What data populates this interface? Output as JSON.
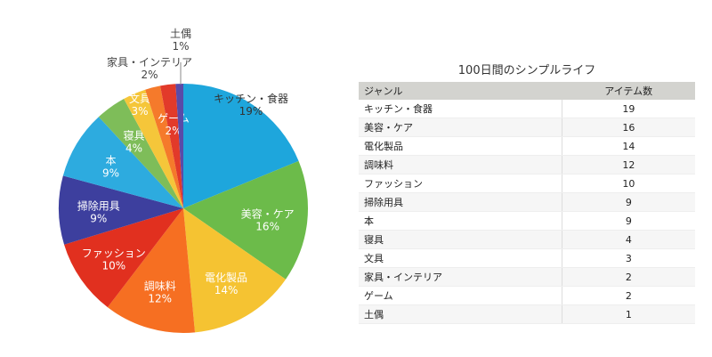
{
  "chart_data": {
    "type": "pie",
    "title": "100日間のシンプルライフ",
    "categories": [
      "キッチン・食器",
      "美容・ケア",
      "電化製品",
      "調味料",
      "ファッション",
      "掃除用具",
      "本",
      "寝具",
      "文具",
      "家具・インテリア",
      "ゲーム",
      "土偶"
    ],
    "values": [
      19,
      16,
      14,
      12,
      10,
      9,
      9,
      4,
      3,
      2,
      2,
      1
    ],
    "percent_labels": [
      "19%",
      "16%",
      "14%",
      "12%",
      "10%",
      "9%",
      "9%",
      "4%",
      "3%",
      "2%",
      "2%",
      "1%"
    ],
    "colors": [
      "#1ea6dc",
      "#6cbb4a",
      "#f5c332",
      "#f66f22",
      "#e1301f",
      "#3d3f9e",
      "#2dabdf",
      "#7ebd59",
      "#f5c63a",
      "#f57a2b",
      "#e23a2a",
      "#5a4ba8"
    ],
    "start": "top",
    "direction": "clockwise"
  },
  "table": {
    "title": "100日間のシンプルライフ",
    "headers": [
      "ジャンル",
      "アイテム数"
    ],
    "rows": [
      [
        "キッチン・食器",
        "19"
      ],
      [
        "美容・ケア",
        "16"
      ],
      [
        "電化製品",
        "14"
      ],
      [
        "調味料",
        "12"
      ],
      [
        "ファッション",
        "10"
      ],
      [
        "掃除用具",
        "9"
      ],
      [
        "本",
        "9"
      ],
      [
        "寝具",
        "4"
      ],
      [
        "文具",
        "3"
      ],
      [
        "家具・インテリア",
        "2"
      ],
      [
        "ゲーム",
        "2"
      ],
      [
        "土偶",
        "1"
      ]
    ]
  }
}
